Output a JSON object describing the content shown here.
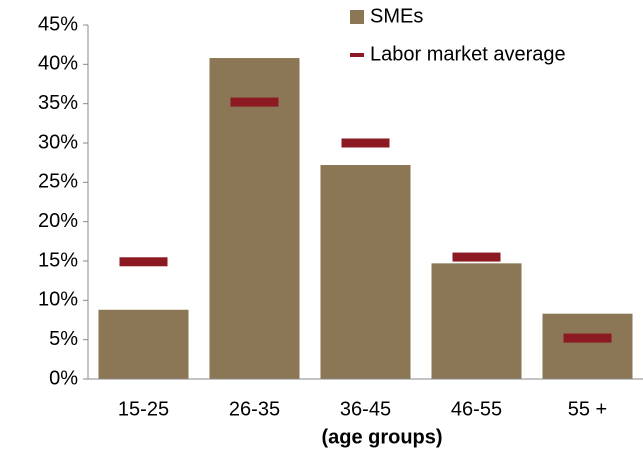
{
  "chart_data": {
    "type": "bar",
    "x_label": "(age groups)",
    "categories": [
      "15-25",
      "26-35",
      "36-45",
      "46-55",
      "55 +"
    ],
    "series": [
      {
        "name": "SMEs",
        "color": "#8b7656",
        "style": "bar",
        "values": [
          8.8,
          40.8,
          27.2,
          14.7,
          8.3
        ]
      },
      {
        "name": "Labor market average",
        "color": "#8b1a22",
        "style": "dash",
        "values": [
          14.9,
          35.2,
          30.0,
          15.5,
          5.2
        ]
      }
    ],
    "ylim": [
      0,
      45
    ],
    "yticks": [
      {
        "value": 0,
        "label": "0%"
      },
      {
        "value": 5,
        "label": "5%"
      },
      {
        "value": 10,
        "label": "10%"
      },
      {
        "value": 15,
        "label": "15%"
      },
      {
        "value": 20,
        "label": "20%"
      },
      {
        "value": 25,
        "label": "25%"
      },
      {
        "value": 30,
        "label": "30%"
      },
      {
        "value": 35,
        "label": "35%"
      },
      {
        "value": 40,
        "label": "40%"
      },
      {
        "value": 45,
        "label": "45%"
      }
    ],
    "grid": false,
    "legend": "top-right"
  }
}
